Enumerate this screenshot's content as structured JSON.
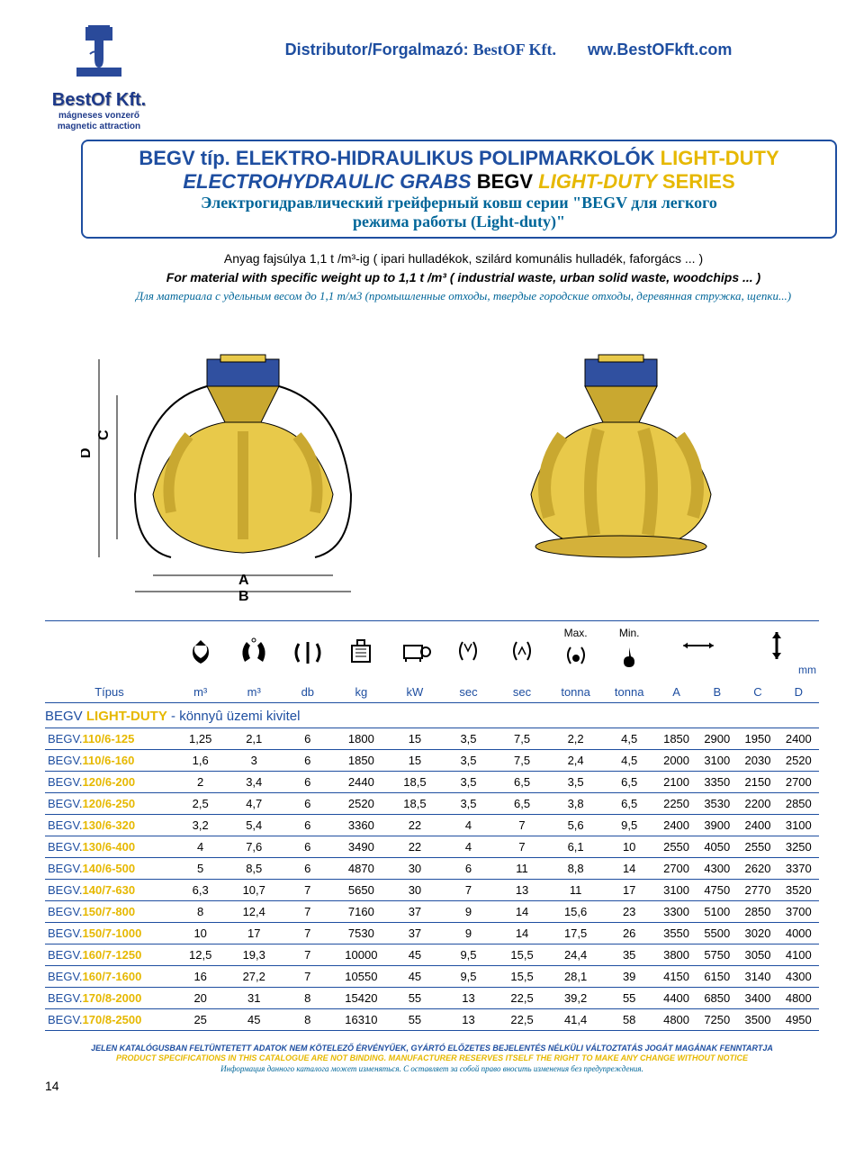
{
  "header": {
    "distributor_label": "Distributor/Forgalmazó:",
    "company": "BestOF Kft.",
    "url": "ww.BestOFkft.com",
    "logo_text": "BestOf Kft.",
    "logo_sub1": "mágneses vonzerő",
    "logo_sub2": "magnetic attraction"
  },
  "title": {
    "line1_prefix": "BEGV típ. ELEKTRO-HIDRAULIKUS POLIPMARKOLÓK",
    "line1_suffix": "LIGHT-DUTY",
    "line2_a": "ELECTROHYDRAULIC GRABS",
    "line2_b": "BEGV",
    "line2_c": "LIGHT-DUTY",
    "line2_d": "SERIES",
    "line3": "Электрогидравлический грейферный ковш серии \"BEGV для легкого",
    "line4": "режима работы (Light-duty)\""
  },
  "desc": {
    "d1": "Anyag fajsúlya  1,1 t /m³-ig ( ipari hulladékok, szilárd komunális hulladék, faforgács ... )",
    "d2": "For material with specific weight up to 1,1 t /m³ ( industrial waste, urban solid waste, woodchips ... )",
    "d3": "Для материала с удельным весом до 1,1 т/м3 (промышленные отходы, твердые городские отходы, деревянная стружка, щепки...)"
  },
  "table": {
    "max_label": "Max.",
    "min_label": "Min.",
    "mm": "mm",
    "headers": [
      "Típus",
      "m³",
      "m³",
      "db",
      "kg",
      "kW",
      "sec",
      "sec",
      "tonna",
      "tonna",
      "A",
      "B",
      "C",
      "D"
    ],
    "section": {
      "prefix": "BEGV ",
      "ld": "LIGHT-DUTY",
      "suffix": " - könnyû üzemi kivitel"
    },
    "rows": [
      {
        "m": "110/6-125",
        "v": [
          "1,25",
          "2,1",
          "6",
          "1800",
          "15",
          "3,5",
          "7,5",
          "2,2",
          "4,5",
          "1850",
          "2900",
          "1950",
          "2400"
        ]
      },
      {
        "m": "110/6-160",
        "v": [
          "1,6",
          "3",
          "6",
          "1850",
          "15",
          "3,5",
          "7,5",
          "2,4",
          "4,5",
          "2000",
          "3100",
          "2030",
          "2520"
        ]
      },
      {
        "m": "120/6-200",
        "v": [
          "2",
          "3,4",
          "6",
          "2440",
          "18,5",
          "3,5",
          "6,5",
          "3,5",
          "6,5",
          "2100",
          "3350",
          "2150",
          "2700"
        ]
      },
      {
        "m": "120/6-250",
        "v": [
          "2,5",
          "4,7",
          "6",
          "2520",
          "18,5",
          "3,5",
          "6,5",
          "3,8",
          "6,5",
          "2250",
          "3530",
          "2200",
          "2850"
        ]
      },
      {
        "m": "130/6-320",
        "v": [
          "3,2",
          "5,4",
          "6",
          "3360",
          "22",
          "4",
          "7",
          "5,6",
          "9,5",
          "2400",
          "3900",
          "2400",
          "3100"
        ]
      },
      {
        "m": "130/6-400",
        "v": [
          "4",
          "7,6",
          "6",
          "3490",
          "22",
          "4",
          "7",
          "6,1",
          "10",
          "2550",
          "4050",
          "2550",
          "3250"
        ]
      },
      {
        "m": "140/6-500",
        "v": [
          "5",
          "8,5",
          "6",
          "4870",
          "30",
          "6",
          "11",
          "8,8",
          "14",
          "2700",
          "4300",
          "2620",
          "3370"
        ]
      },
      {
        "m": "140/7-630",
        "v": [
          "6,3",
          "10,7",
          "7",
          "5650",
          "30",
          "7",
          "13",
          "11",
          "17",
          "3100",
          "4750",
          "2770",
          "3520"
        ]
      },
      {
        "m": "150/7-800",
        "v": [
          "8",
          "12,4",
          "7",
          "7160",
          "37",
          "9",
          "14",
          "15,6",
          "23",
          "3300",
          "5100",
          "2850",
          "3700"
        ]
      },
      {
        "m": "150/7-1000",
        "v": [
          "10",
          "17",
          "7",
          "7530",
          "37",
          "9",
          "14",
          "17,5",
          "26",
          "3550",
          "5500",
          "3020",
          "4000"
        ]
      },
      {
        "m": "160/7-1250",
        "v": [
          "12,5",
          "19,3",
          "7",
          "10000",
          "45",
          "9,5",
          "15,5",
          "24,4",
          "35",
          "3800",
          "5750",
          "3050",
          "4100"
        ]
      },
      {
        "m": "160/7-1600",
        "v": [
          "16",
          "27,2",
          "7",
          "10550",
          "45",
          "9,5",
          "15,5",
          "28,1",
          "39",
          "4150",
          "6150",
          "3140",
          "4300"
        ]
      },
      {
        "m": "170/8-2000",
        "v": [
          "20",
          "31",
          "8",
          "15420",
          "55",
          "13",
          "22,5",
          "39,2",
          "55",
          "4400",
          "6850",
          "3400",
          "4800"
        ]
      },
      {
        "m": "170/8-2500",
        "v": [
          "25",
          "45",
          "8",
          "16310",
          "55",
          "13",
          "22,5",
          "41,4",
          "58",
          "4800",
          "7250",
          "3500",
          "4950"
        ]
      }
    ]
  },
  "footer": {
    "f1": "JELEN KATALÓGUSBAN FELTÜNTETETT ADATOK NEM KÖTELEZŐ ÉRVÉNYŰEK, GYÁRTÓ ELŐZETES BEJELENTÉS NÉLKÜLI VÁLTOZTATÁS JOGÁT MAGÁNAK FENNTARTJA",
    "f2": "PRODUCT SPECIFICATIONS IN THIS CATALOGUE ARE NOT BINDING. MANUFACTURER RESERVES ITSELF THE RIGHT TO MAKE ANY CHANGE WITHOUT NOTICE",
    "f3": "Информация данного каталога может изменяться. С оставляет за собой право вносить изменения без предупреждения.",
    "page": "14"
  },
  "colors": {
    "blue": "#1e4ea0",
    "yellow": "#e6b800",
    "cyan": "#006699",
    "grab_body": "#e8c94a",
    "grab_shadow": "#c9a830",
    "grab_motor": "#3050a0"
  }
}
